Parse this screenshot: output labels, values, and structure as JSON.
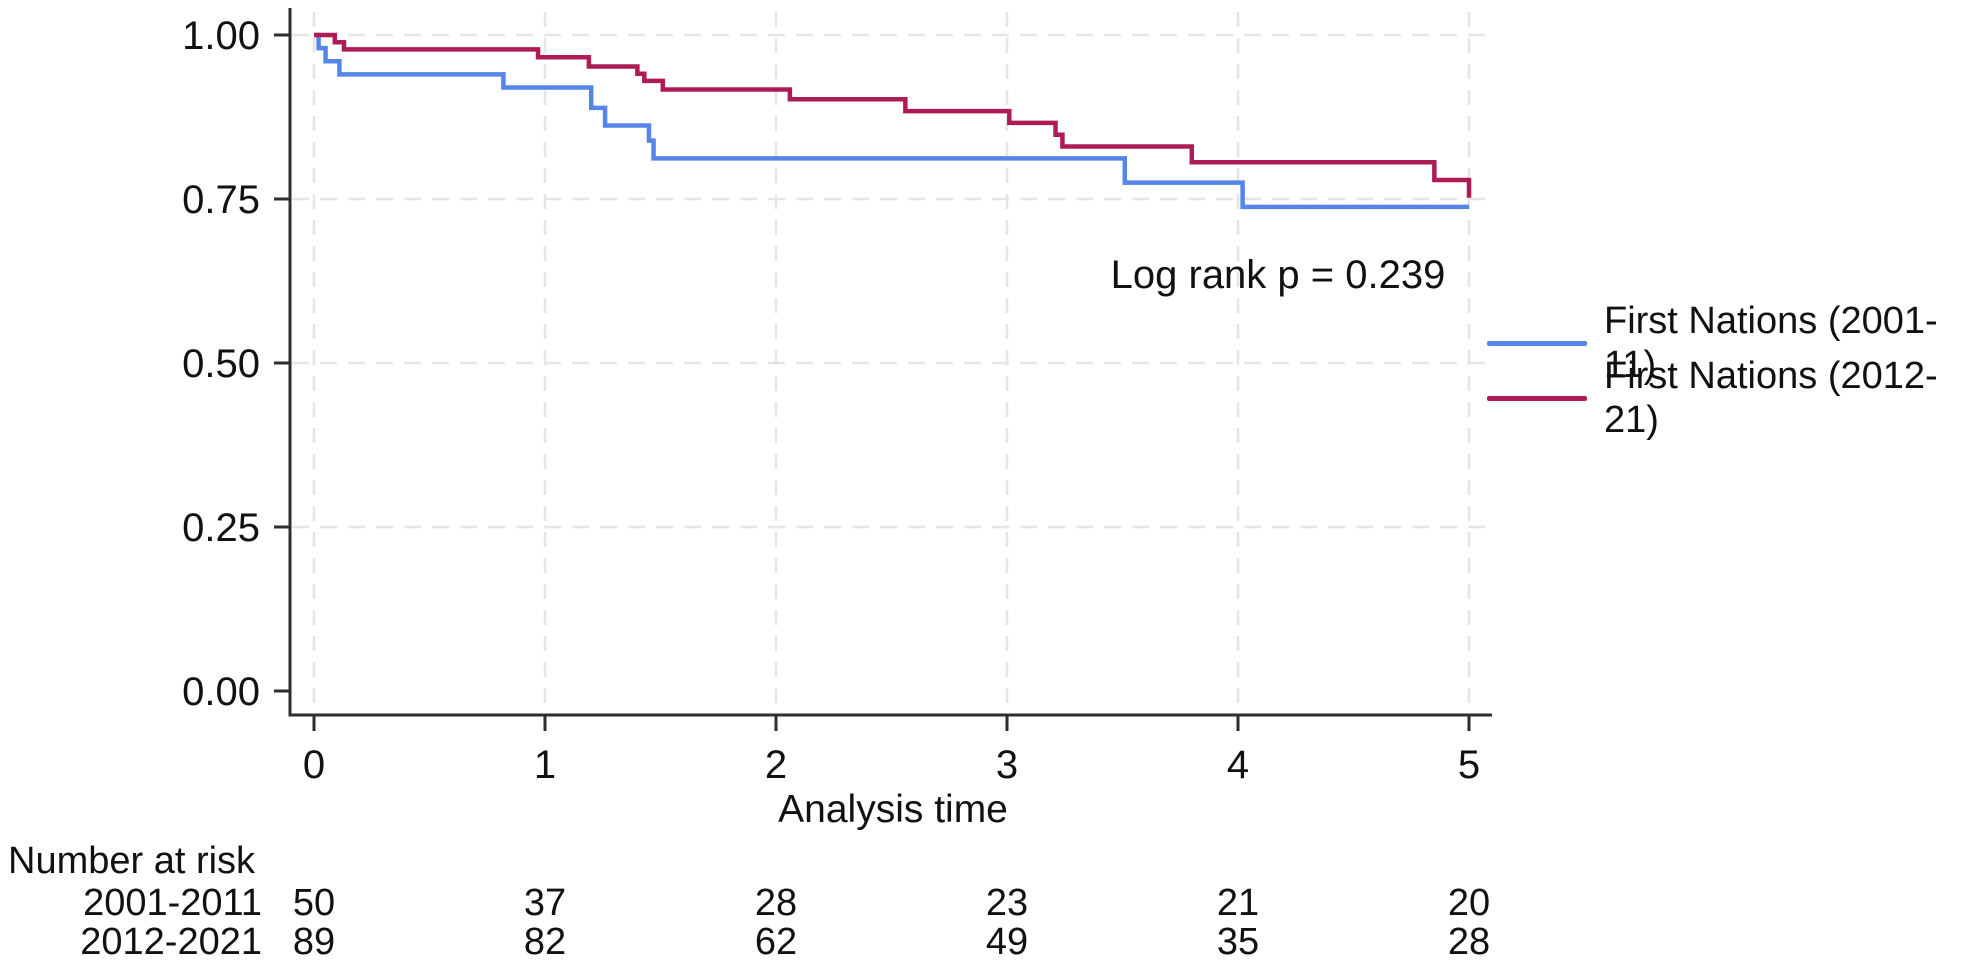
{
  "chart_data": {
    "type": "line",
    "subtype": "kaplan-meier-step-survival",
    "title": "",
    "xlabel": "Analysis time",
    "ylabel": "",
    "xlim": [
      0,
      5
    ],
    "ylim": [
      0.0,
      1.0
    ],
    "x_ticks": [
      "0",
      "1",
      "2",
      "3",
      "4",
      "5"
    ],
    "x_tick_values": [
      0,
      1,
      2,
      3,
      4,
      5
    ],
    "y_ticks": [
      "0.00",
      "0.25",
      "0.50",
      "0.75",
      "1.00"
    ],
    "y_tick_values": [
      0,
      0.25,
      0.5,
      0.75,
      1.0
    ],
    "grid": true,
    "grid_style": "dashed",
    "legend_position": "right-outside",
    "annotations": [
      {
        "text": "Log rank p = 0.239",
        "x": 3.2,
        "y": 0.63
      }
    ],
    "series": [
      {
        "name": "First Nations (2001-11)",
        "color": "#5585e8",
        "steps": [
          [
            0,
            1.0
          ],
          [
            0.02,
            0.98
          ],
          [
            0.05,
            0.96
          ],
          [
            0.11,
            0.94
          ],
          [
            0.82,
            0.92
          ],
          [
            1.2,
            0.889
          ],
          [
            1.26,
            0.862
          ],
          [
            1.45,
            0.839
          ],
          [
            1.47,
            0.812
          ],
          [
            3.51,
            0.775
          ],
          [
            4.02,
            0.738
          ]
        ],
        "end_x": 5.0
      },
      {
        "name": "First Nations (2012-21)",
        "color": "#ae1b57",
        "steps": [
          [
            0,
            1.0
          ],
          [
            0.09,
            0.989
          ],
          [
            0.13,
            0.978
          ],
          [
            0.97,
            0.966
          ],
          [
            1.19,
            0.952
          ],
          [
            1.4,
            0.941
          ],
          [
            1.43,
            0.93
          ],
          [
            1.51,
            0.917
          ],
          [
            2.06,
            0.902
          ],
          [
            2.56,
            0.884
          ],
          [
            3.01,
            0.866
          ],
          [
            3.21,
            0.848
          ],
          [
            3.24,
            0.83
          ],
          [
            3.8,
            0.806
          ],
          [
            4.85,
            0.779
          ],
          [
            5.0,
            0.752
          ]
        ],
        "end_x": 5.0
      }
    ],
    "number_at_risk": {
      "title": "Number at risk",
      "time_points": [
        0,
        1,
        2,
        3,
        4,
        5
      ],
      "rows": [
        {
          "label": "2001-2011",
          "counts": [
            "50",
            "37",
            "28",
            "23",
            "21",
            "20"
          ]
        },
        {
          "label": "2012-2021",
          "counts": [
            "89",
            "82",
            "62",
            "49",
            "35",
            "28"
          ]
        }
      ]
    },
    "colors": {
      "axis": "#2e2e2e",
      "gridline": "#e5e5e5",
      "text": "#111111"
    }
  }
}
